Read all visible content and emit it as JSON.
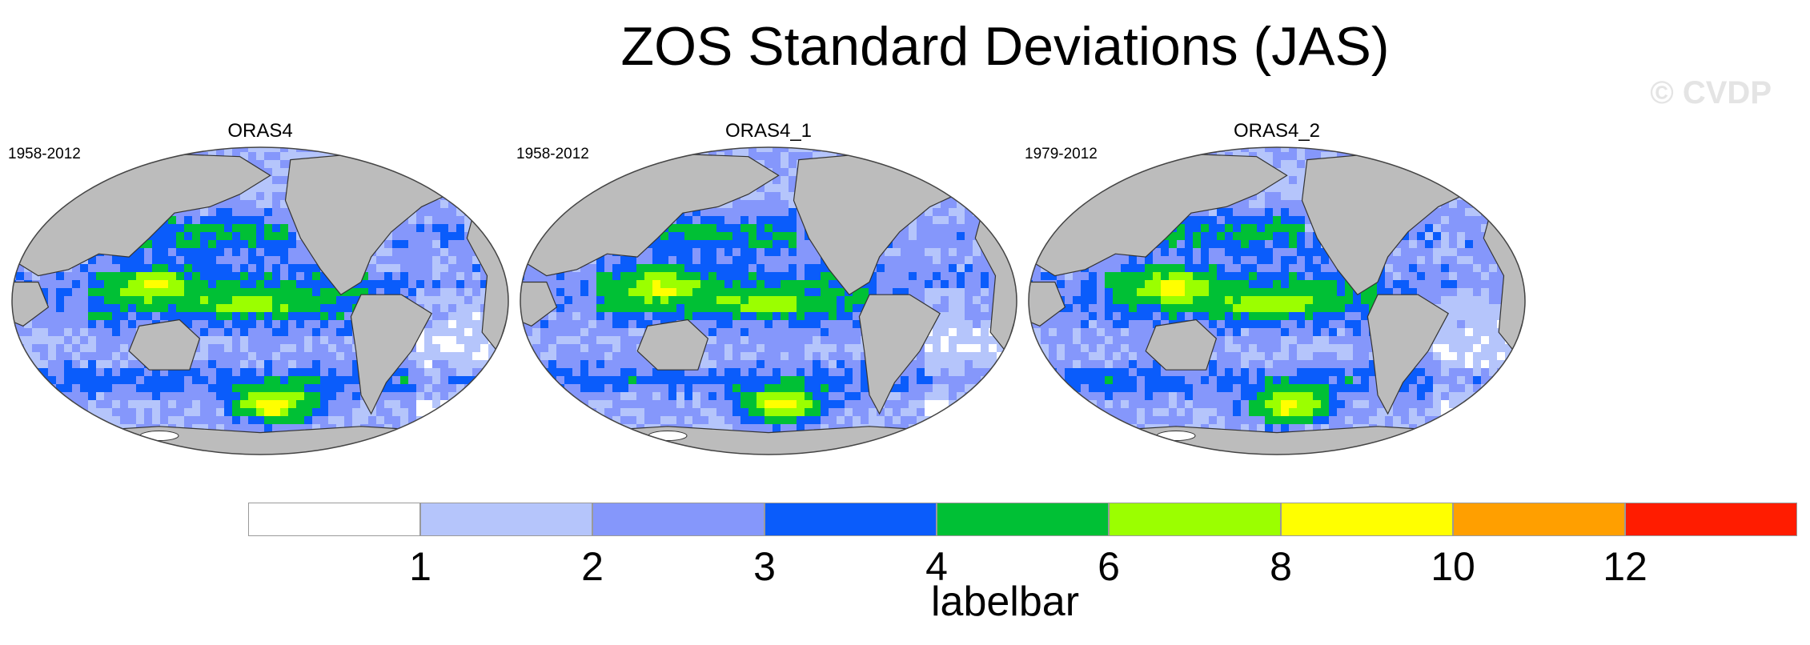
{
  "title": "ZOS Standard Deviations (JAS)",
  "watermark": "© CVDP",
  "panels": [
    {
      "name": "ORAS4",
      "period": "1958-2012"
    },
    {
      "name": "ORAS4_1",
      "period": "1958-2012"
    },
    {
      "name": "ORAS4_2",
      "period": "1979-2012"
    }
  ],
  "labelbar": {
    "label": "labelbar",
    "ticks": [
      "1",
      "2",
      "3",
      "4",
      "6",
      "8",
      "10",
      "12"
    ],
    "colors": [
      "#ffffff",
      "#b5c5fb",
      "#8597fb",
      "#0a5cfb",
      "#00c035",
      "#9bff00",
      "#ffff00",
      "#ff9f00",
      "#ff1c00"
    ]
  },
  "colors": {
    "land": "#bcbcbc",
    "coast": "#333333"
  }
}
